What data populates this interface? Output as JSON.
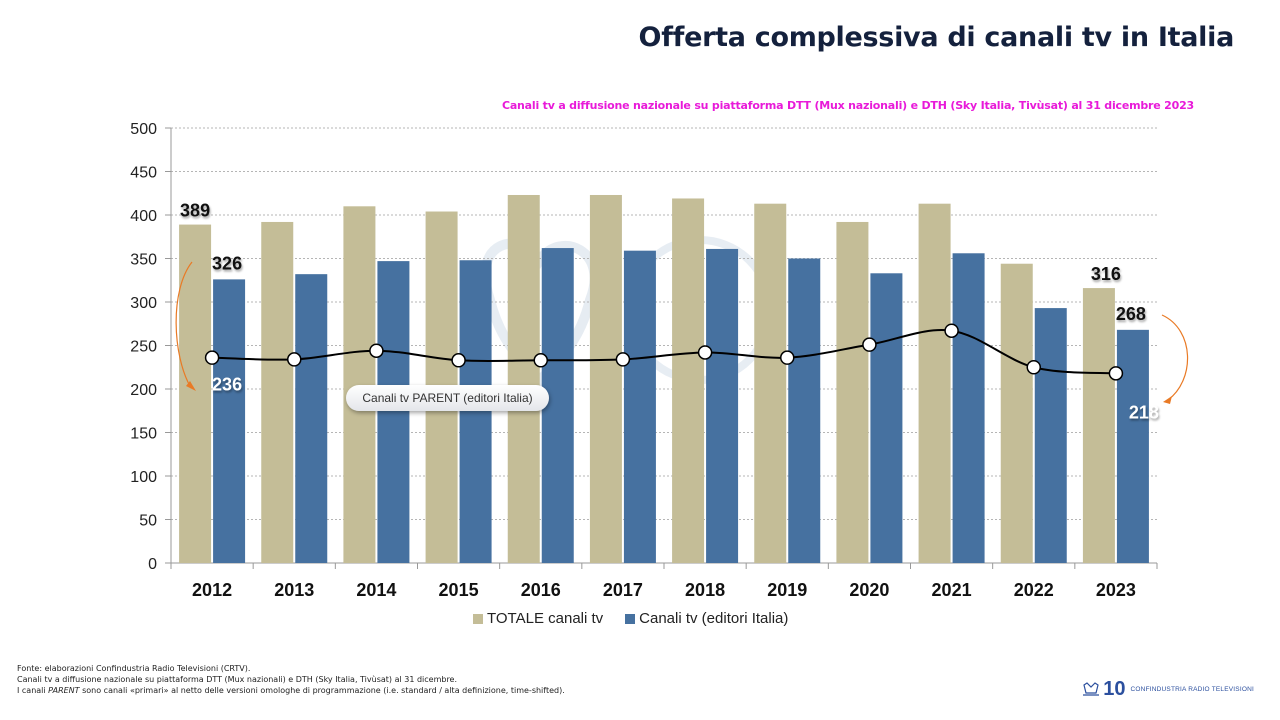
{
  "header": {
    "title": "Offerta complessiva di canali tv in Italia",
    "subtitle": "Canali tv a diffusione nazionale su piattaforma DTT (Mux nazionali) e DTH (Sky Italia, Tivùsat) al 31 dicembre 2023"
  },
  "callout": {
    "label": "Canali tv PARENT (editori Italia)"
  },
  "footnote": {
    "line1": "Fonte: elaborazioni Confindustria Radio Televisioni (CRTV).",
    "line2": "Canali tv a diffusione nazionale su piattaforma DTT (Mux nazionali) e DTH (Sky Italia, Tivùsat) al 31 dicembre.",
    "line3_prefix": "I canali ",
    "line3_em": "PARENT",
    "line3_suffix": " sono canali «primari» al netto delle versioni omologhe di programmazione  (i.e. standard / alta definizione, time-shifted)."
  },
  "logo": {
    "number": "10",
    "badge": "ANNI",
    "text": "CONFINDUSTRIA RADIO TELEVISIONI"
  },
  "colors": {
    "totale": "#c4bd97",
    "editori": "#4671a0",
    "parent_line": "#000000",
    "arrow": "#e97a25",
    "title": "#14213d",
    "subtitle": "#e81ad9"
  },
  "chart_data": {
    "type": "bar",
    "title": "Offerta complessiva di canali tv in Italia",
    "xlabel": "",
    "ylabel": "",
    "ylim": [
      0,
      500
    ],
    "yticks": [
      0,
      50,
      100,
      150,
      200,
      250,
      300,
      350,
      400,
      450,
      500
    ],
    "grid": true,
    "legend_position": "bottom",
    "categories": [
      "2012",
      "2013",
      "2014",
      "2015",
      "2016",
      "2017",
      "2018",
      "2019",
      "2020",
      "2021",
      "2022",
      "2023"
    ],
    "series": [
      {
        "name": "TOTALE canali tv",
        "type": "bar",
        "values": [
          389,
          392,
          410,
          404,
          423,
          423,
          419,
          413,
          392,
          413,
          344,
          316
        ]
      },
      {
        "name": "Canali tv (editori Italia)",
        "type": "bar",
        "values": [
          326,
          332,
          347,
          348,
          362,
          359,
          361,
          350,
          333,
          356,
          293,
          268
        ]
      },
      {
        "name": "Canali tv PARENT (editori Italia)",
        "type": "line",
        "values": [
          236,
          234,
          244,
          233,
          233,
          234,
          242,
          236,
          251,
          267,
          225,
          218
        ]
      }
    ],
    "data_labels": [
      {
        "series": "TOTALE canali tv",
        "category": "2012",
        "text": "389"
      },
      {
        "series": "Canali tv (editori Italia)",
        "category": "2012",
        "text": "326"
      },
      {
        "series": "Canali tv PARENT (editori Italia)",
        "category": "2012",
        "text": "236"
      },
      {
        "series": "TOTALE canali tv",
        "category": "2023",
        "text": "316"
      },
      {
        "series": "Canali tv (editori Italia)",
        "category": "2023",
        "text": "268"
      },
      {
        "series": "Canali tv PARENT (editori Italia)",
        "category": "2023",
        "text": "218"
      }
    ]
  }
}
